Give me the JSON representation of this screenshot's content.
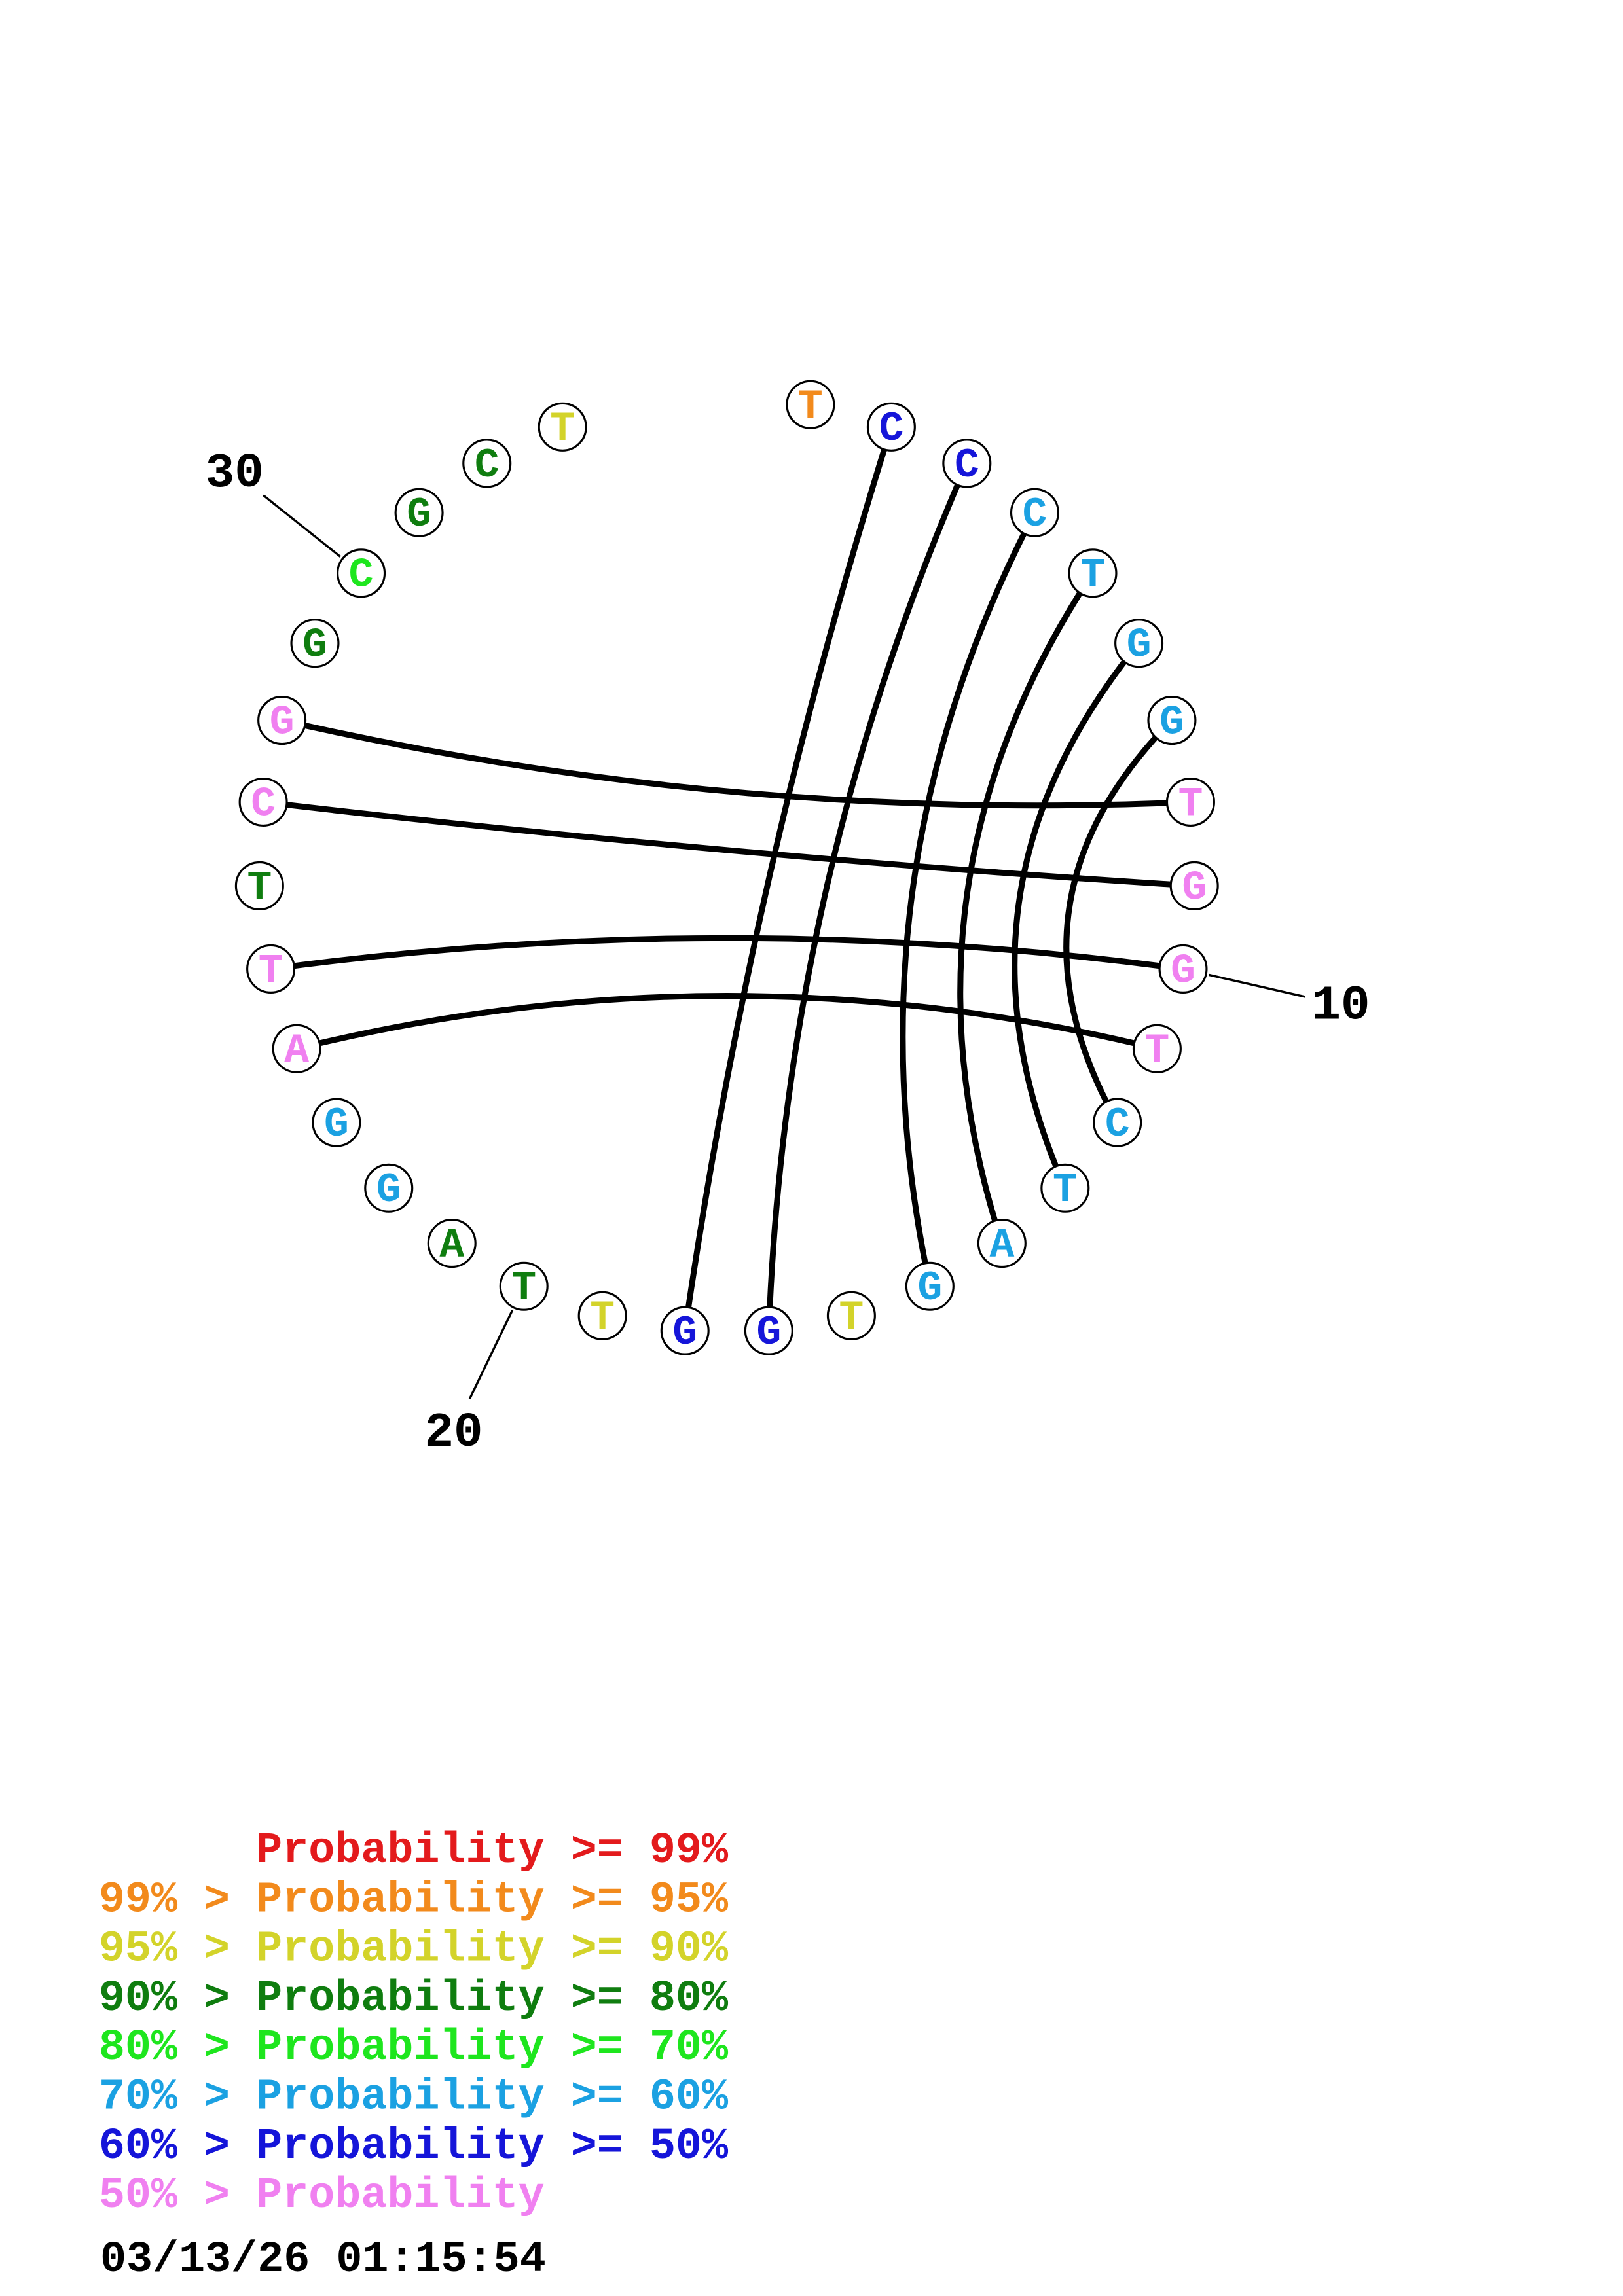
{
  "diagram": {
    "nucleotides": [
      {
        "base": "T",
        "color": "#f28a1c"
      },
      {
        "base": "C",
        "color": "#1515d9"
      },
      {
        "base": "C",
        "color": "#1515d9"
      },
      {
        "base": "C",
        "color": "#1ba1e2"
      },
      {
        "base": "T",
        "color": "#1ba1e2"
      },
      {
        "base": "G",
        "color": "#1ba1e2"
      },
      {
        "base": "G",
        "color": "#1ba1e2"
      },
      {
        "base": "T",
        "color": "#f080f0"
      },
      {
        "base": "G",
        "color": "#f080f0"
      },
      {
        "base": "G",
        "color": "#f080f0"
      },
      {
        "base": "T",
        "color": "#f080f0"
      },
      {
        "base": "C",
        "color": "#1ba1e2"
      },
      {
        "base": "T",
        "color": "#1ba1e2"
      },
      {
        "base": "A",
        "color": "#1ba1e2"
      },
      {
        "base": "G",
        "color": "#1ba1e2"
      },
      {
        "base": "T",
        "color": "#d3d32a"
      },
      {
        "base": "G",
        "color": "#1515d9"
      },
      {
        "base": "G",
        "color": "#1515d9"
      },
      {
        "base": "T",
        "color": "#d3d32a"
      },
      {
        "base": "T",
        "color": "#0f7d0f"
      },
      {
        "base": "A",
        "color": "#0f7d0f"
      },
      {
        "base": "G",
        "color": "#1ba1e2"
      },
      {
        "base": "G",
        "color": "#1ba1e2"
      },
      {
        "base": "A",
        "color": "#f080f0"
      },
      {
        "base": "T",
        "color": "#f080f0"
      },
      {
        "base": "T",
        "color": "#0f7d0f"
      },
      {
        "base": "C",
        "color": "#f080f0"
      },
      {
        "base": "G",
        "color": "#f080f0"
      },
      {
        "base": "G",
        "color": "#0f7d0f"
      },
      {
        "base": "C",
        "color": "#1ee61e"
      },
      {
        "base": "G",
        "color": "#0f7d0f"
      },
      {
        "base": "C",
        "color": "#0f7d0f"
      },
      {
        "base": "T",
        "color": "#d3d32a"
      }
    ],
    "pairs": [
      [
        2,
        18
      ],
      [
        3,
        17
      ],
      [
        4,
        15
      ],
      [
        5,
        14
      ],
      [
        6,
        13
      ],
      [
        7,
        12
      ],
      [
        8,
        28
      ],
      [
        9,
        27
      ],
      [
        10,
        25
      ],
      [
        11,
        24
      ]
    ],
    "position_labels": [
      {
        "position": 10,
        "label": "10"
      },
      {
        "position": 20,
        "label": "20"
      },
      {
        "position": 30,
        "label": "30"
      }
    ]
  },
  "legend": [
    {
      "text": "Probability >= 99%",
      "color": "#e31a1c"
    },
    {
      "text": "99% > Probability >= 95%",
      "color": "#f28a1c"
    },
    {
      "text": "95% > Probability >= 90%",
      "color": "#d3d32a"
    },
    {
      "text": "90% > Probability >= 80%",
      "color": "#0f7d0f"
    },
    {
      "text": "80% > Probability >= 70%",
      "color": "#1ee61e"
    },
    {
      "text": "70% > Probability >= 60%",
      "color": "#1ba1e2"
    },
    {
      "text": "60% > Probability >= 50%",
      "color": "#1515d9"
    },
    {
      "text": "50% > Probability",
      "color": "#f080f0"
    }
  ],
  "timestamp": "03/13/26 01:15:54"
}
